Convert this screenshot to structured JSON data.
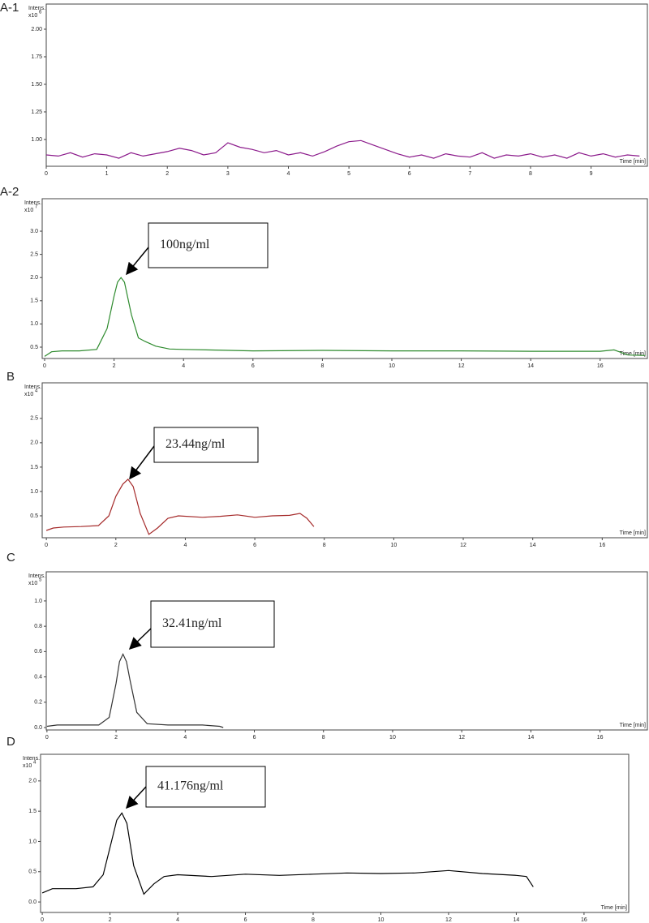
{
  "chart_data": [
    {
      "type": "line",
      "panel": "A-1",
      "y_label": "Intens.",
      "y_scale": "x10",
      "y_scale_exponent": "6",
      "x_label": "Time [min]",
      "color": "#8b1a8b",
      "x": [
        0,
        0.2,
        0.4,
        0.6,
        0.8,
        1,
        1.2,
        1.4,
        1.6,
        1.8,
        2,
        2.2,
        2.4,
        2.6,
        2.8,
        3,
        3.2,
        3.4,
        3.6,
        3.8,
        4,
        4.2,
        4.4,
        4.6,
        4.8,
        5,
        5.2,
        5.4,
        5.6,
        5.8,
        6,
        6.2,
        6.4,
        6.6,
        6.8,
        7,
        7.2,
        7.4,
        7.6,
        7.8,
        8,
        8.2,
        8.4,
        8.6,
        8.8,
        9,
        9.2,
        9.4,
        9.6,
        9.8
      ],
      "values": [
        0.86,
        0.85,
        0.88,
        0.84,
        0.87,
        0.86,
        0.83,
        0.88,
        0.85,
        0.87,
        0.89,
        0.92,
        0.9,
        0.86,
        0.88,
        0.97,
        0.93,
        0.91,
        0.88,
        0.9,
        0.86,
        0.88,
        0.85,
        0.89,
        0.94,
        0.98,
        0.99,
        0.95,
        0.91,
        0.87,
        0.84,
        0.86,
        0.83,
        0.87,
        0.85,
        0.84,
        0.88,
        0.83,
        0.86,
        0.85,
        0.87,
        0.84,
        0.86,
        0.83,
        0.88,
        0.85,
        0.87,
        0.84,
        0.86,
        0.85
      ],
      "xlim": [
        0,
        9.93
      ],
      "ylim": [
        0.757,
        2.228
      ],
      "xticks": [
        0,
        1,
        2,
        3,
        4,
        5,
        6,
        7,
        8,
        9
      ],
      "yticks": [
        {
          "value": 1,
          "label": "1.00"
        },
        {
          "value": 1.25,
          "label": "1.25"
        },
        {
          "value": 1.5,
          "label": "1.50"
        },
        {
          "value": 1.75,
          "label": "1.75"
        },
        {
          "value": 2,
          "label": "2.00"
        }
      ]
    },
    {
      "type": "line",
      "panel": "A-2",
      "y_label": "Intens.",
      "y_scale": "x10",
      "y_scale_exponent": "7",
      "x_label": "Time [min]",
      "color": "#2e8b2e",
      "annotation": "100ng/ml",
      "x": [
        0,
        0.2,
        0.5,
        1,
        1.5,
        1.8,
        2,
        2.1,
        2.2,
        2.3,
        2.5,
        2.7,
        2.9,
        3.2,
        3.6,
        4,
        6,
        8,
        10,
        12,
        14,
        16,
        16.4,
        16.8,
        17.3
      ],
      "values": [
        0.3,
        0.4,
        0.42,
        0.42,
        0.45,
        0.9,
        1.6,
        1.9,
        2.0,
        1.9,
        1.2,
        0.7,
        0.62,
        0.52,
        0.46,
        0.45,
        0.42,
        0.43,
        0.42,
        0.42,
        0.41,
        0.41,
        0.44,
        0.33,
        0.32
      ],
      "xlim": [
        -0.07,
        17.36
      ],
      "ylim": [
        0.255,
        3.7
      ],
      "xticks": [
        0,
        2,
        4,
        6,
        8,
        10,
        12,
        14,
        16
      ],
      "yticks": [
        0.5,
        {
          "value": 1,
          "label": "1.0"
        },
        1.5,
        {
          "value": 2,
          "label": "2.0"
        },
        2.5,
        {
          "value": 3,
          "label": "3.0"
        }
      ]
    },
    {
      "type": "line",
      "panel": "B",
      "y_label": "Intens.",
      "y_scale": "x10",
      "y_scale_exponent": "4",
      "x_label": "Time [min]",
      "color": "#a52a2a",
      "annotation": "23.44ng/ml",
      "x": [
        0,
        0.2,
        0.5,
        1,
        1.5,
        1.8,
        2,
        2.2,
        2.35,
        2.5,
        2.7,
        2.95,
        3.2,
        3.5,
        3.8,
        4.5,
        5,
        5.5,
        6,
        6.5,
        7,
        7.3,
        7.5,
        7.7
      ],
      "values": [
        0.2,
        0.25,
        0.27,
        0.28,
        0.3,
        0.5,
        0.9,
        1.15,
        1.25,
        1.1,
        0.55,
        0.12,
        0.25,
        0.45,
        0.5,
        0.47,
        0.49,
        0.52,
        0.47,
        0.5,
        0.51,
        0.55,
        0.45,
        0.28
      ],
      "xlim": [
        -0.12,
        17.3
      ],
      "ylim": [
        0.05,
        3.23
      ],
      "xticks": [
        0,
        2,
        4,
        6,
        8,
        10,
        12,
        14,
        16
      ],
      "yticks": [
        0.5,
        {
          "value": 1,
          "label": "1.0"
        },
        1.5,
        {
          "value": 2,
          "label": "2.0"
        },
        2.5
      ]
    },
    {
      "type": "line",
      "panel": "C",
      "y_label": "Intens.",
      "y_scale": "x10",
      "y_scale_exponent": "5",
      "x_label": "Time [min]",
      "color": "#333333",
      "annotation": "32.41ng/ml",
      "x": [
        0,
        0.3,
        1,
        1.5,
        1.8,
        2,
        2.1,
        2.2,
        2.3,
        2.4,
        2.6,
        2.9,
        3.5,
        4,
        4.5,
        5,
        5.1
      ],
      "values": [
        0.01,
        0.02,
        0.02,
        0.02,
        0.08,
        0.35,
        0.52,
        0.58,
        0.52,
        0.38,
        0.12,
        0.03,
        0.02,
        0.02,
        0.02,
        0.01,
        0.0
      ],
      "xlim": [
        -0.02,
        17.37
      ],
      "ylim": [
        -0.019,
        1.23
      ],
      "xticks": [
        0,
        2,
        4,
        6,
        8,
        10,
        12,
        14,
        16
      ],
      "yticks": [
        {
          "value": 0,
          "label": "0.0"
        },
        0.2,
        0.4,
        0.6,
        0.8,
        {
          "value": 1,
          "label": "1.0"
        }
      ]
    },
    {
      "type": "line",
      "panel": "D",
      "y_label": "Intens.",
      "y_scale": "x10",
      "y_scale_exponent": "4",
      "x_label": "Time [min]",
      "color": "#000000",
      "annotation": "41.176ng/ml",
      "x": [
        0,
        0.3,
        1,
        1.5,
        1.8,
        2,
        2.2,
        2.35,
        2.5,
        2.7,
        3,
        3.3,
        3.6,
        4,
        5,
        6,
        7,
        8,
        9,
        10,
        11,
        12,
        13,
        14,
        14.3,
        14.5
      ],
      "values": [
        0.15,
        0.22,
        0.22,
        0.25,
        0.45,
        0.9,
        1.35,
        1.47,
        1.3,
        0.6,
        0.13,
        0.3,
        0.42,
        0.45,
        0.42,
        0.46,
        0.44,
        0.46,
        0.48,
        0.47,
        0.48,
        0.52,
        0.47,
        0.44,
        0.42,
        0.25
      ],
      "xlim": [
        -0.05,
        17.32
      ],
      "ylim": [
        -0.173,
        2.44
      ],
      "xticks": [
        0,
        2,
        4,
        6,
        8,
        10,
        12,
        14,
        16
      ],
      "yticks": [
        {
          "value": 0,
          "label": "0.0"
        },
        {
          "value": 0.5,
          "label": "0.5"
        },
        {
          "value": 1,
          "label": "1.0"
        },
        {
          "value": 1.5,
          "label": "1.5"
        },
        {
          "value": 2,
          "label": "2.0"
        }
      ]
    }
  ]
}
